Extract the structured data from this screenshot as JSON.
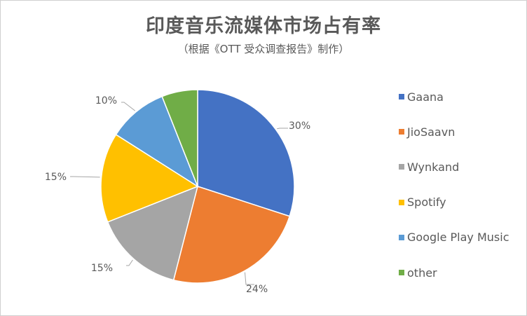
{
  "chart_data": {
    "type": "pie",
    "title": "印度音乐流媒体市场占有率",
    "subtitle": "（根据《OTT 受众调查报告》制作）",
    "legend_position": "right",
    "slices": [
      {
        "name": "Gaana",
        "value": 30,
        "label": "30%",
        "color": "#4472C4"
      },
      {
        "name": "JioSaavn",
        "value": 24,
        "label": "24%",
        "color": "#ED7D31"
      },
      {
        "name": "Wynkand",
        "value": 15,
        "label": "15%",
        "color": "#A5A5A5"
      },
      {
        "name": "Spotify",
        "value": 15,
        "label": "15%",
        "color": "#FFC000"
      },
      {
        "name": "Google Play Music",
        "value": 10,
        "label": "10%",
        "color": "#5B9BD5"
      },
      {
        "name": "other",
        "value": 6,
        "label": "",
        "color": "#70AD47"
      }
    ]
  }
}
